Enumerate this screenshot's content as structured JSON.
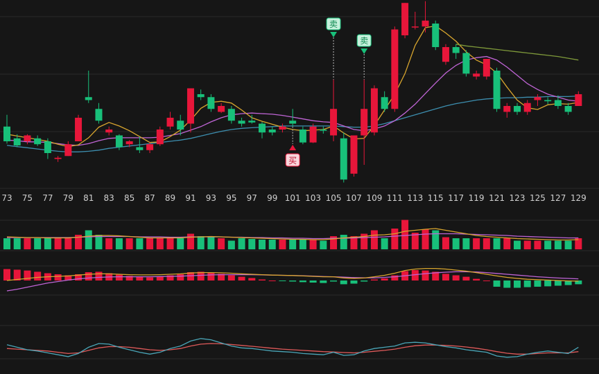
{
  "chart_data": {
    "type": "candlestick",
    "x": [
      73,
      74,
      75,
      76,
      77,
      78,
      79,
      80,
      81,
      82,
      83,
      84,
      85,
      86,
      87,
      88,
      89,
      90,
      91,
      92,
      93,
      94,
      95,
      96,
      97,
      98,
      99,
      100,
      101,
      102,
      103,
      104,
      105,
      106,
      107,
      108,
      109,
      110,
      111,
      112,
      113,
      114,
      115,
      116,
      117,
      118,
      119,
      120,
      121,
      122,
      123,
      124,
      125,
      126,
      127,
      128,
      129
    ],
    "tick_labels": [
      "73",
      "75",
      "77",
      "79",
      "81",
      "83",
      "85",
      "87",
      "89",
      "91",
      "93",
      "95",
      "97",
      "99",
      "101",
      "103",
      "105",
      "107",
      "109",
      "111",
      "113",
      "115",
      "117",
      "119",
      "121",
      "123",
      "125",
      "127",
      "129"
    ],
    "ohlc": [
      [
        18.5,
        20.5,
        15.6,
        16.0
      ],
      [
        16.5,
        17.2,
        15.0,
        15.3
      ],
      [
        16.0,
        17.2,
        15.5,
        17.0
      ],
      [
        16.5,
        17.0,
        15.2,
        15.5
      ],
      [
        16.0,
        16.5,
        13.0,
        14.0
      ],
      [
        13.0,
        13.5,
        12.5,
        13.2
      ],
      [
        13.5,
        16.0,
        13.5,
        15.5
      ],
      [
        16.0,
        20.5,
        16.0,
        20.0
      ],
      [
        23.5,
        28.0,
        22.5,
        23.0
      ],
      [
        21.5,
        22.5,
        19.0,
        19.5
      ],
      [
        17.5,
        18.5,
        17.0,
        18.0
      ],
      [
        17.0,
        17.2,
        14.5,
        15.0
      ],
      [
        15.5,
        16.2,
        15.0,
        16.0
      ],
      [
        15.0,
        16.8,
        14.0,
        14.5
      ],
      [
        14.5,
        15.8,
        14.0,
        15.5
      ],
      [
        15.5,
        18.5,
        15.2,
        18.0
      ],
      [
        18.5,
        21.0,
        18.0,
        20.0
      ],
      [
        19.5,
        20.5,
        17.0,
        18.0
      ],
      [
        19.0,
        25.0,
        17.5,
        25.0
      ],
      [
        24.0,
        24.8,
        23.0,
        23.5
      ],
      [
        23.5,
        24.0,
        21.0,
        21.5
      ],
      [
        21.0,
        22.5,
        20.8,
        22.0
      ],
      [
        21.5,
        22.0,
        19.0,
        19.5
      ],
      [
        19.5,
        20.0,
        18.5,
        19.0
      ],
      [
        19.5,
        20.5,
        19.0,
        19.2
      ],
      [
        19.0,
        19.3,
        16.5,
        17.5
      ],
      [
        18.0,
        18.5,
        17.0,
        17.5
      ],
      [
        18.0,
        19.0,
        17.5,
        18.5
      ],
      [
        19.5,
        21.5,
        18.5,
        19.0
      ],
      [
        18.0,
        18.5,
        15.5,
        15.8
      ],
      [
        15.8,
        19.0,
        15.7,
        18.5
      ],
      [
        18.0,
        18.5,
        17.3,
        17.8
      ],
      [
        17.0,
        26.5,
        16.0,
        21.5
      ],
      [
        16.5,
        17.5,
        9.0,
        9.5
      ],
      [
        10.5,
        17.0,
        10.0,
        17.0
      ],
      [
        17.0,
        26.5,
        12.0,
        21.5
      ],
      [
        17.5,
        25.5,
        17.0,
        25.0
      ],
      [
        23.5,
        24.5,
        21.0,
        21.5
      ],
      [
        21.5,
        35.5,
        21.0,
        35.0
      ],
      [
        34.0,
        39.5,
        33.5,
        39.5
      ],
      [
        35.5,
        38.0,
        35.0,
        35.5
      ],
      [
        35.5,
        39.8,
        34.5,
        36.5
      ],
      [
        36.0,
        36.5,
        31.5,
        32.0
      ],
      [
        29.5,
        32.5,
        29.0,
        32.0
      ],
      [
        32.0,
        32.5,
        30.0,
        31.0
      ],
      [
        31.0,
        31.5,
        27.0,
        27.5
      ],
      [
        27.0,
        28.0,
        26.5,
        27.5
      ],
      [
        27.0,
        30.0,
        26.5,
        30.0
      ],
      [
        28.0,
        28.5,
        21.0,
        21.5
      ],
      [
        21.0,
        22.5,
        20.0,
        22.0
      ],
      [
        22.0,
        22.5,
        20.5,
        21.0
      ],
      [
        21.0,
        23.0,
        20.5,
        22.5
      ],
      [
        23.0,
        24.0,
        22.0,
        23.5
      ],
      [
        23.0,
        23.5,
        22.3,
        22.8
      ],
      [
        23.0,
        23.8,
        21.5,
        22.0
      ],
      [
        22.0,
        22.5,
        20.5,
        21.0
      ],
      [
        22.0,
        24.5,
        22.0,
        24.0
      ]
    ],
    "ma_short": [
      17.2,
      16.9,
      16.6,
      16.3,
      16.0,
      15.5,
      15.1,
      15.4,
      16.6,
      18.4,
      19.2,
      18.6,
      17.8,
      16.8,
      15.8,
      15.9,
      16.8,
      17.9,
      19.6,
      21.6,
      22.6,
      22.8,
      22.5,
      21.3,
      20.0,
      19.4,
      18.9,
      18.4,
      18.0,
      17.8,
      17.9,
      18.0,
      18.6,
      17.4,
      16.4,
      16.5,
      18.7,
      21.3,
      24.0,
      27.5,
      32.3,
      35.3,
      35.6,
      34.4,
      33.0,
      31.2,
      29.8,
      29.0,
      27.6,
      25.2,
      23.0,
      21.7,
      21.4,
      22.2,
      22.4,
      22.3,
      22.6
    ],
    "ma_mid": [
      16.2,
      16.1,
      15.9,
      15.9,
      15.8,
      15.6,
      15.4,
      15.3,
      15.6,
      16.1,
      16.5,
      16.6,
      16.6,
      16.6,
      16.6,
      16.7,
      17.0,
      17.3,
      17.9,
      18.5,
      19.3,
      20.0,
      20.5,
      20.7,
      20.8,
      20.7,
      20.6,
      20.4,
      20.1,
      19.8,
      19.5,
      19.3,
      19.2,
      18.6,
      18.0,
      17.8,
      18.1,
      18.6,
      19.5,
      20.8,
      22.3,
      24.1,
      25.9,
      27.6,
      28.9,
      29.8,
      30.2,
      30.4,
      29.8,
      28.6,
      27.2,
      25.8,
      24.8,
      24.0,
      23.5,
      23.0,
      22.8
    ],
    "ma_long": [
      15.3,
      15.1,
      14.9,
      14.7,
      14.5,
      14.3,
      14.2,
      14.2,
      14.3,
      14.5,
      14.8,
      15.0,
      15.2,
      15.4,
      15.6,
      15.8,
      16.0,
      16.2,
      16.5,
      16.9,
      17.3,
      17.7,
      18.0,
      18.2,
      18.3,
      18.4,
      18.5,
      18.6,
      18.6,
      18.6,
      18.6,
      18.6,
      18.6,
      18.5,
      18.4,
      18.4,
      18.6,
      19.0,
      19.5,
      20.0,
      20.5,
      21.0,
      21.5,
      22.0,
      22.4,
      22.7,
      23.0,
      23.2,
      23.3,
      23.4,
      23.4,
      23.5,
      23.5,
      23.6,
      23.6,
      23.6,
      23.7
    ],
    "ma_extra_start": 117,
    "ma_extra": [
      32.5,
      32.2,
      32.0,
      31.8,
      31.6,
      31.4,
      31.2,
      31.0,
      30.8,
      30.6,
      30.4,
      30.1,
      29.8
    ],
    "signals": [
      {
        "x": 101,
        "label": "买",
        "type": "buy"
      },
      {
        "x": 105,
        "label": "卖",
        "type": "sell"
      },
      {
        "x": 108,
        "label": "卖",
        "type": "sell"
      }
    ],
    "volume": [
      0.32,
      0.32,
      0.32,
      0.32,
      0.32,
      0.32,
      0.32,
      0.42,
      0.55,
      0.42,
      0.32,
      0.32,
      0.32,
      0.32,
      0.32,
      0.32,
      0.32,
      0.32,
      0.45,
      0.38,
      0.38,
      0.32,
      0.25,
      0.32,
      0.3,
      0.28,
      0.28,
      0.28,
      0.28,
      0.28,
      0.28,
      0.25,
      0.38,
      0.42,
      0.38,
      0.45,
      0.55,
      0.32,
      0.6,
      0.85,
      0.48,
      0.58,
      0.55,
      0.35,
      0.32,
      0.32,
      0.32,
      0.32,
      0.32,
      0.32,
      0.25,
      0.25,
      0.25,
      0.25,
      0.25,
      0.25,
      0.32
    ],
    "volume_ma1": [
      0.36,
      0.35,
      0.34,
      0.34,
      0.33,
      0.33,
      0.33,
      0.35,
      0.38,
      0.4,
      0.4,
      0.39,
      0.37,
      0.35,
      0.33,
      0.33,
      0.33,
      0.33,
      0.35,
      0.36,
      0.37,
      0.36,
      0.35,
      0.34,
      0.33,
      0.32,
      0.31,
      0.3,
      0.29,
      0.29,
      0.28,
      0.28,
      0.3,
      0.33,
      0.35,
      0.37,
      0.41,
      0.42,
      0.45,
      0.52,
      0.55,
      0.58,
      0.6,
      0.55,
      0.5,
      0.45,
      0.4,
      0.37,
      0.35,
      0.33,
      0.31,
      0.3,
      0.29,
      0.28,
      0.27,
      0.27,
      0.28
    ],
    "volume_ma2": [
      0.34,
      0.34,
      0.34,
      0.34,
      0.34,
      0.34,
      0.34,
      0.35,
      0.36,
      0.37,
      0.37,
      0.37,
      0.37,
      0.36,
      0.36,
      0.36,
      0.35,
      0.35,
      0.36,
      0.36,
      0.36,
      0.36,
      0.35,
      0.35,
      0.34,
      0.34,
      0.33,
      0.33,
      0.32,
      0.32,
      0.31,
      0.31,
      0.32,
      0.32,
      0.33,
      0.34,
      0.35,
      0.36,
      0.38,
      0.4,
      0.42,
      0.44,
      0.45,
      0.45,
      0.45,
      0.44,
      0.43,
      0.42,
      0.41,
      0.4,
      0.38,
      0.37,
      0.36,
      0.35,
      0.34,
      0.33,
      0.33
    ],
    "macd": [
      0.55,
      0.52,
      0.48,
      0.42,
      0.35,
      0.3,
      0.25,
      0.3,
      0.4,
      0.42,
      0.35,
      0.28,
      0.22,
      0.18,
      0.15,
      0.18,
      0.25,
      0.3,
      0.4,
      0.42,
      0.38,
      0.32,
      0.25,
      0.18,
      0.12,
      0.05,
      0.0,
      -0.02,
      -0.05,
      -0.08,
      -0.1,
      -0.12,
      -0.05,
      -0.18,
      -0.15,
      -0.05,
      0.05,
      0.1,
      0.25,
      0.45,
      0.5,
      0.48,
      0.42,
      0.32,
      0.25,
      0.18,
      0.08,
      0.0,
      -0.3,
      -0.35,
      -0.35,
      -0.32,
      -0.3,
      -0.28,
      -0.25,
      -0.22,
      -0.18
    ],
    "macd_dif": [
      0.0,
      0.05,
      0.1,
      0.15,
      0.18,
      0.2,
      0.22,
      0.26,
      0.3,
      0.32,
      0.32,
      0.3,
      0.28,
      0.27,
      0.27,
      0.28,
      0.3,
      0.32,
      0.36,
      0.38,
      0.38,
      0.37,
      0.35,
      0.32,
      0.3,
      0.28,
      0.26,
      0.25,
      0.24,
      0.22,
      0.2,
      0.18,
      0.18,
      0.12,
      0.1,
      0.12,
      0.18,
      0.25,
      0.35,
      0.48,
      0.55,
      0.58,
      0.58,
      0.55,
      0.5,
      0.45,
      0.38,
      0.3,
      0.22,
      0.15,
      0.1,
      0.06,
      0.04,
      0.02,
      0.0,
      -0.02,
      -0.03
    ],
    "macd_dea": [
      -0.5,
      -0.42,
      -0.32,
      -0.22,
      -0.12,
      -0.05,
      0.02,
      0.08,
      0.12,
      0.15,
      0.17,
      0.18,
      0.18,
      0.18,
      0.18,
      0.19,
      0.2,
      0.21,
      0.23,
      0.25,
      0.27,
      0.28,
      0.28,
      0.28,
      0.28,
      0.27,
      0.26,
      0.25,
      0.24,
      0.23,
      0.21,
      0.19,
      0.18,
      0.16,
      0.14,
      0.13,
      0.13,
      0.15,
      0.18,
      0.23,
      0.28,
      0.33,
      0.37,
      0.4,
      0.42,
      0.42,
      0.41,
      0.38,
      0.34,
      0.3,
      0.26,
      0.22,
      0.18,
      0.15,
      0.12,
      0.1,
      0.08
    ],
    "osc1": [
      0.4,
      0.2,
      0.0,
      -0.1,
      -0.25,
      -0.4,
      -0.55,
      -0.3,
      0.2,
      0.5,
      0.45,
      0.2,
      0.0,
      -0.2,
      -0.35,
      -0.2,
      0.1,
      0.3,
      0.7,
      0.9,
      0.8,
      0.55,
      0.3,
      0.15,
      0.1,
      0.0,
      -0.1,
      -0.15,
      -0.2,
      -0.3,
      -0.35,
      -0.4,
      -0.2,
      -0.45,
      -0.4,
      -0.1,
      0.1,
      0.2,
      0.3,
      0.55,
      0.6,
      0.55,
      0.4,
      0.25,
      0.15,
      0.0,
      -0.1,
      -0.2,
      -0.5,
      -0.6,
      -0.55,
      -0.35,
      -0.2,
      -0.1,
      -0.2,
      -0.3,
      0.2
    ],
    "osc2": [
      0.1,
      0.05,
      0.0,
      -0.05,
      -0.1,
      -0.2,
      -0.3,
      -0.25,
      -0.05,
      0.15,
      0.25,
      0.25,
      0.2,
      0.1,
      0.0,
      -0.05,
      0.0,
      0.1,
      0.3,
      0.45,
      0.5,
      0.48,
      0.42,
      0.35,
      0.28,
      0.2,
      0.12,
      0.05,
      0.0,
      -0.05,
      -0.1,
      -0.15,
      -0.18,
      -0.22,
      -0.25,
      -0.2,
      -0.12,
      -0.05,
      0.05,
      0.2,
      0.32,
      0.38,
      0.38,
      0.35,
      0.3,
      0.22,
      0.12,
      0.0,
      -0.15,
      -0.28,
      -0.35,
      -0.35,
      -0.3,
      -0.25,
      -0.25,
      -0.25,
      -0.15
    ],
    "price_range": [
      8,
      40
    ]
  }
}
